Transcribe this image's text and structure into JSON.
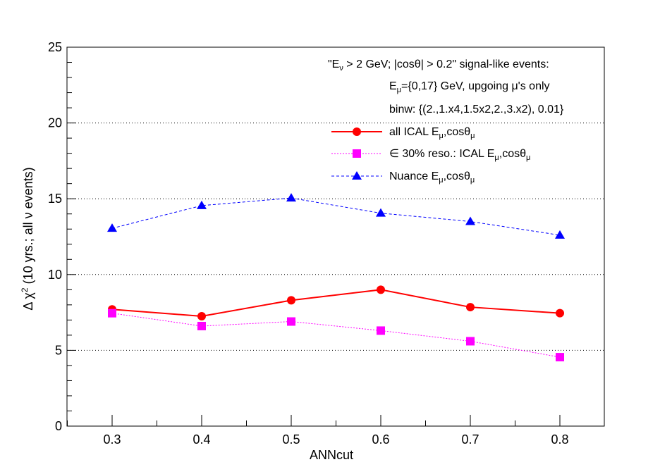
{
  "chart_data": {
    "type": "line",
    "title": "",
    "xlabel": "ANNcut",
    "ylabel": {
      "prefix": "Δ χ",
      "sup": "2",
      "middle": " (10 yrs.; all ",
      "nu": "ν",
      "suffix": " events)"
    },
    "xlim": [
      0.25,
      0.85
    ],
    "ylim": [
      0,
      25
    ],
    "xticks": [
      0.3,
      0.4,
      0.5,
      0.6,
      0.7,
      0.8
    ],
    "xtick_labels": [
      "0.3",
      "0.4",
      "0.5",
      "0.6",
      "0.7",
      "0.8"
    ],
    "yticks": [
      0,
      5,
      10,
      15,
      20,
      25
    ],
    "ytick_labels": [
      "0",
      "5",
      "10",
      "15",
      "20",
      "25"
    ],
    "grid_y": [
      5,
      10,
      15,
      20
    ],
    "x": [
      0.3,
      0.4,
      0.5,
      0.6,
      0.7,
      0.8
    ],
    "series": [
      {
        "name": "all ICAL Eμ,cosθμ",
        "color": "#ff0000",
        "marker": "circle",
        "line": "solid",
        "values": [
          7.7,
          7.25,
          8.3,
          9.0,
          7.85,
          7.45
        ]
      },
      {
        "name": "∈ 30% reso.: ICAL Eμ,cosθμ",
        "color": "#ff00ff",
        "marker": "square",
        "line": "dotted",
        "values": [
          7.45,
          6.6,
          6.9,
          6.3,
          5.6,
          4.55
        ]
      },
      {
        "name": "Nuance Eμ,cosθμ",
        "color": "#0000ff",
        "marker": "triangle",
        "line": "dashed",
        "values": [
          13.05,
          14.55,
          15.05,
          14.05,
          13.5,
          12.6
        ]
      }
    ],
    "legend_position": "top-right",
    "legend_entries": [
      {
        "prefix": "all ICAL E",
        "sub1": "μ",
        "middle": ",cosθ",
        "sub2": "μ"
      },
      {
        "prefix": "∈ 30% reso.: ICAL E",
        "sub1": "μ",
        "middle": ",cosθ",
        "sub2": "μ"
      },
      {
        "prefix": "Nuance E",
        "sub1": "μ",
        "middle": ",cosθ",
        "sub2": "μ"
      }
    ],
    "annotations": {
      "line1": {
        "a": "\"E",
        "sub": "ν",
        "b": " > 2 GeV; |cosθ| > 0.2\" signal-like events:"
      },
      "line2": {
        "a": "E",
        "sub": "μ",
        "b": "={0,17} GeV, upgoing μ's only"
      },
      "line3": "binw:  {(2.,1.x4,1.5x2,2.,3.x2), 0.01}"
    }
  }
}
